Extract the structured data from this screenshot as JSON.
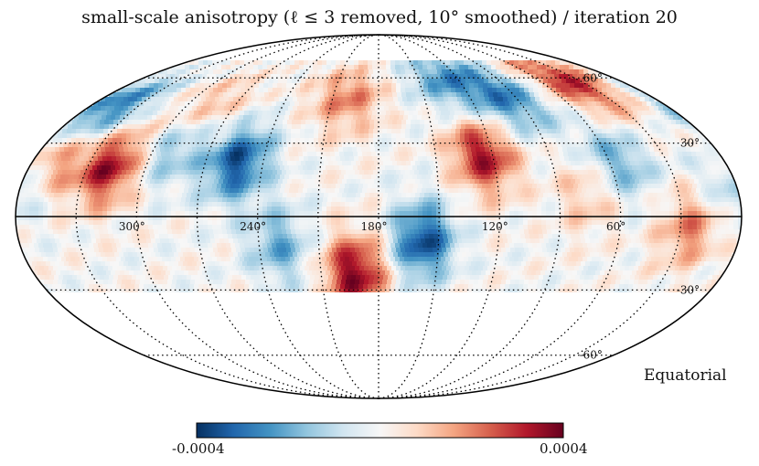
{
  "chart_data": {
    "type": "heatmap",
    "projection": "mollweide",
    "title": "small-scale anisotropy (ℓ ≤ 3 removed, 10° smoothed) / iteration 20",
    "coordinate_system": "Equatorial",
    "colormap": "RdBu_r",
    "color_range": [
      -0.0004,
      0.0004
    ],
    "colorbar": {
      "min_label": "-0.0004",
      "max_label": "0.0004"
    },
    "longitude_labels": [
      "300°",
      "240°",
      "180°",
      "120°",
      "60°"
    ],
    "latitude_labels": [
      "60°",
      "30°",
      "-30°",
      "-60°"
    ],
    "declination_coverage_deg": [
      -30,
      65
    ],
    "hotspots": [
      {
        "ra": 318,
        "dec": 20,
        "value": 0.00035
      },
      {
        "ra": 352,
        "dec": 22,
        "value": 0.0003
      },
      {
        "ra": 125,
        "dec": 25,
        "value": 0.00034
      },
      {
        "ra": 40,
        "dec": 58,
        "value": 0.0003
      },
      {
        "ra": 192,
        "dec": -23,
        "value": 0.00038
      },
      {
        "ra": 200,
        "dec": 50,
        "value": 0.0002
      },
      {
        "ra": 285,
        "dec": 45,
        "value": 0.00015
      },
      {
        "ra": 25,
        "dec": -5,
        "value": 0.0002
      },
      {
        "ra": 345,
        "dec": 45,
        "value": -0.0003
      },
      {
        "ra": 253,
        "dec": 22,
        "value": -0.00035
      },
      {
        "ra": 158,
        "dec": -10,
        "value": -0.00036
      },
      {
        "ra": 95,
        "dec": 50,
        "value": -0.00025
      },
      {
        "ra": 290,
        "dec": 28,
        "value": -0.0002
      },
      {
        "ra": 0,
        "dec": 15,
        "value": -0.00025
      },
      {
        "ra": 55,
        "dec": 22,
        "value": -0.0002
      },
      {
        "ra": 230,
        "dec": -12,
        "value": -0.0002
      },
      {
        "ra": 75,
        "dec": 8,
        "value": 0.00012
      },
      {
        "ra": 130,
        "dec": 58,
        "value": -0.00022
      }
    ]
  }
}
